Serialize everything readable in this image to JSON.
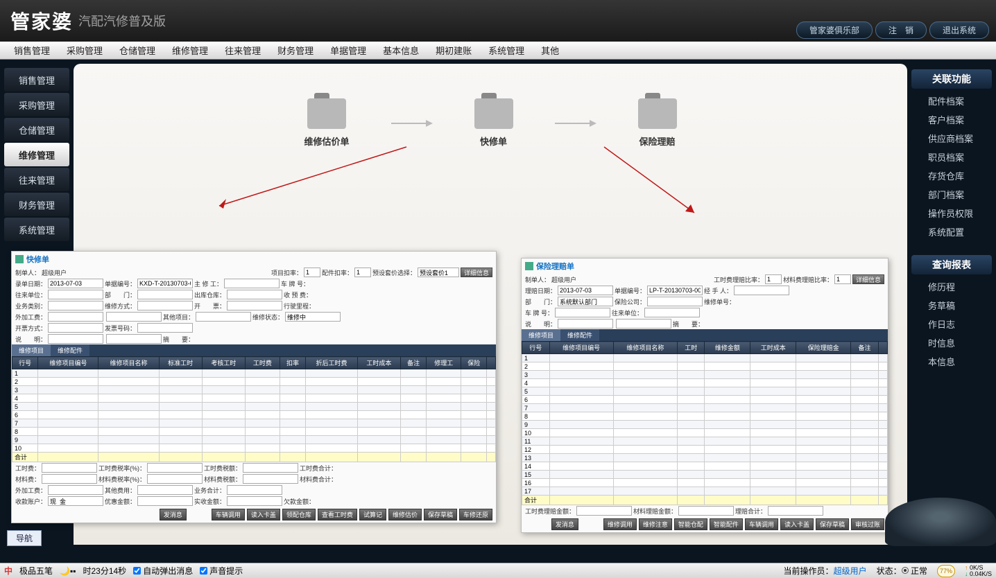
{
  "app": {
    "name": "管家婆",
    "subtitle": "汽配汽修普及版"
  },
  "titlebar_buttons": [
    "管家婆俱乐部",
    "注　销",
    "退出系统"
  ],
  "menubar": [
    "销售管理",
    "采购管理",
    "仓储管理",
    "维修管理",
    "往来管理",
    "财务管理",
    "单据管理",
    "基本信息",
    "期初建账",
    "系统管理",
    "其他"
  ],
  "left_sidebar": [
    "销售管理",
    "采购管理",
    "仓储管理",
    "维修管理",
    "往来管理",
    "财务管理",
    "系统管理"
  ],
  "left_sidebar_active": 3,
  "process": [
    {
      "label": "维修估价单"
    },
    {
      "label": "快修单"
    },
    {
      "label": "保险理赔"
    }
  ],
  "right_panel": {
    "header1": "关联功能",
    "items1": [
      "配件档案",
      "客户档案",
      "供应商档案",
      "职员档案",
      "存货仓库",
      "部门档案",
      "操作员权限",
      "系统配置"
    ],
    "header2": "查询报表",
    "items2": [
      "修历程",
      "务草稿",
      "作日志",
      "时信息",
      "本信息"
    ]
  },
  "form_left": {
    "title": "快修单",
    "maker_label": "制单人：",
    "maker_value": "超级用户",
    "rate1_label": "项目扣率：",
    "rate1_value": "1",
    "rate2_label": "配件扣率：",
    "rate2_value": "1",
    "preset_label": "预设套价选择：",
    "preset_value": "预设套价1",
    "preset_btn": "详细信息",
    "rows": [
      [
        "录单日期：",
        "2013-07-03",
        "单据编号：",
        "KXD-T-20130703-0001",
        "主 修 工：",
        "",
        "车 牌 号："
      ],
      [
        "往来单位：",
        "",
        "部　　门：",
        "",
        "出库仓库：",
        "",
        "收 预 费："
      ],
      [
        "业务类别：",
        "",
        "维修方式：",
        "",
        "开　　票：",
        "",
        "行驶里程："
      ],
      [
        "外加工费：",
        "",
        "",
        "",
        "其他项目：",
        "",
        "维修状态：",
        "维修中"
      ],
      [
        "开票方式：",
        "",
        "发票号码：",
        ""
      ],
      [
        "说　　明：",
        "",
        "",
        "",
        "摘　　要："
      ]
    ],
    "tabs": [
      "维修项目",
      "维修配件"
    ],
    "columns": [
      "行号",
      "维修项目编号",
      "维修项目名称",
      "标准工时",
      "考核工时",
      "工时费",
      "扣率",
      "折后工时费",
      "工时成本",
      "备注",
      "修理工",
      "保险",
      ""
    ],
    "row_count": 10,
    "total_label": "合计",
    "bottom_fields": [
      [
        "工时费：",
        "",
        "工时费税率(%)：",
        "",
        "工时费税额：",
        "",
        "工时费合计："
      ],
      [
        "材料费：",
        "",
        "材料费税率(%)：",
        "",
        "材料费税额：",
        "",
        "材料费合计："
      ],
      [
        "外加工费：",
        "",
        "其他费用：",
        "",
        "业务合计：",
        ""
      ],
      [
        "收款账户：",
        "现  金",
        "优惠金额：",
        "",
        "实收金额：",
        "",
        "欠款金额："
      ]
    ],
    "buttons": [
      "发消息",
      "",
      "车辆调用",
      "读入卡盖",
      "领配仓库",
      "查看工时费",
      "试算记",
      "维修估价",
      "保存草稿",
      "车修还原"
    ]
  },
  "form_right": {
    "title": "保险理赔单",
    "maker_label": "制单人：",
    "maker_value": "超级用户",
    "rate1_label": "工时费理赔比率：",
    "rate1_value": "1",
    "rate2_label": "材料费理赔比率：",
    "rate2_value": "1",
    "preset_btn": "详细信息",
    "rows": [
      [
        "理赔日期：",
        "2013-07-03",
        "单据编号：",
        "LP-T-20130703-0001",
        "经 手 人：",
        ""
      ],
      [
        "部　　门：",
        "系统默认部门",
        "保险公司：",
        "",
        "维修单号："
      ],
      [
        "车 牌 号：",
        "",
        "往来单位：",
        "",
        ""
      ],
      [
        "说　　明：",
        "",
        "",
        "",
        "摘　　要："
      ]
    ],
    "tabs": [
      "维修项目",
      "维修配件"
    ],
    "columns": [
      "行号",
      "维修项目编号",
      "维修项目名称",
      "工时",
      "维修金额",
      "工时成本",
      "保险理赔金",
      "备注",
      ""
    ],
    "row_count": 17,
    "total_label": "合计",
    "bottom_fields": [
      [
        "工时费理赔金额：",
        "",
        "材料理赔金额：",
        "",
        "理赔合计：",
        ""
      ]
    ],
    "buttons": [
      "发消息",
      "",
      "维修调用",
      "维修注意",
      "智能仓配",
      "智能配件",
      "车辆调用",
      "读入卡盖",
      "保存草稿",
      "审核过账"
    ]
  },
  "nav_tab": "导航",
  "taskbar": {
    "ime": "极品五笔",
    "time": "时23分14秒",
    "cb1_label": "自动弹出消息",
    "cb2_label": "声音提示",
    "operator_label": "当前操作员：",
    "operator_value": "超级用户",
    "status_label": "状态：",
    "status_value": "正常",
    "badge": "77%",
    "net_up": "0K/S",
    "net_down": "0.04K/S"
  },
  "colors": {
    "red_arrow": "#c01818"
  }
}
